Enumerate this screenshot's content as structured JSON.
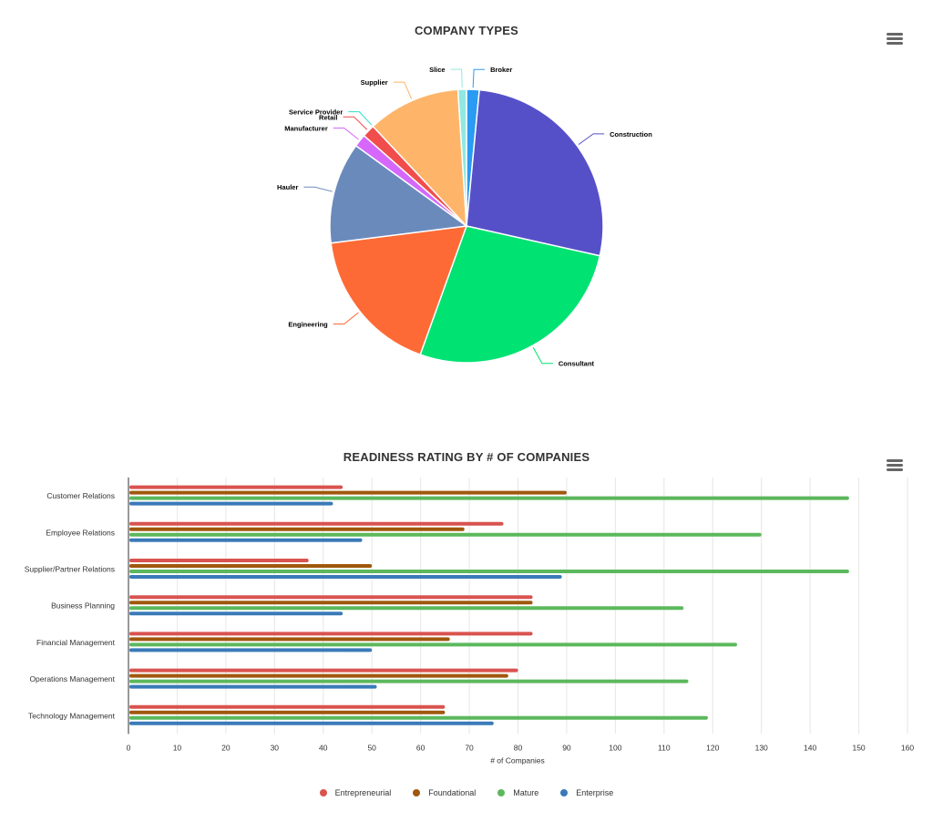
{
  "pie_chart": {
    "title": "COMPANY TYPES",
    "menu_icon": "hamburger-menu-icon"
  },
  "bar_chart": {
    "title": "READINESS RATING BY # OF COMPANIES",
    "menu_icon": "hamburger-menu-icon"
  },
  "chart_data": [
    {
      "type": "pie",
      "title": "COMPANY TYPES",
      "slices": [
        {
          "label": "Broker",
          "value": 1.5,
          "color": "#2b9af3"
        },
        {
          "label": "Construction",
          "value": 27,
          "color": "#5650c8"
        },
        {
          "label": "Consultant",
          "value": 27,
          "color": "#00e272"
        },
        {
          "label": "Engineering",
          "value": 17.5,
          "color": "#fe6a35"
        },
        {
          "label": "Hauler",
          "value": 12,
          "color": "#6b8abc"
        },
        {
          "label": "Manufacturer",
          "value": 1.5,
          "color": "#d568fb"
        },
        {
          "label": "Retail",
          "value": 1.5,
          "color": "#f14d4d"
        },
        {
          "label": "Service Provider",
          "value": 0,
          "color": "#2ee0ca"
        },
        {
          "label": "Supplier",
          "value": 11,
          "color": "#feb56a"
        },
        {
          "label": "Slice",
          "value": 1,
          "color": "#91e8e1"
        }
      ]
    },
    {
      "type": "bar",
      "orientation": "horizontal",
      "title": "READINESS RATING BY # OF COMPANIES",
      "xlabel": "# of Companies",
      "ylabel": "",
      "xlim": [
        0,
        160
      ],
      "xticks": [
        0,
        10,
        20,
        30,
        40,
        50,
        60,
        70,
        80,
        90,
        100,
        110,
        120,
        130,
        140,
        150,
        160
      ],
      "grid": true,
      "legend_position": "bottom",
      "categories": [
        "Customer Relations",
        "Employee Relations",
        "Supplier/Partner Relations",
        "Business Planning",
        "Financial Management",
        "Operations Management",
        "Technology Management"
      ],
      "series": [
        {
          "name": "Entrepreneurial",
          "color": "#d9534f",
          "values": [
            44,
            77,
            37,
            83,
            83,
            80,
            65
          ]
        },
        {
          "name": "Foundational",
          "color": "#a0580d",
          "values": [
            90,
            69,
            50,
            83,
            66,
            78,
            65
          ]
        },
        {
          "name": "Mature",
          "color": "#5cb85c",
          "values": [
            148,
            130,
            148,
            114,
            125,
            115,
            119
          ]
        },
        {
          "name": "Enterprise",
          "color": "#3a7ab8",
          "values": [
            42,
            48,
            89,
            44,
            50,
            51,
            75
          ]
        }
      ]
    }
  ]
}
